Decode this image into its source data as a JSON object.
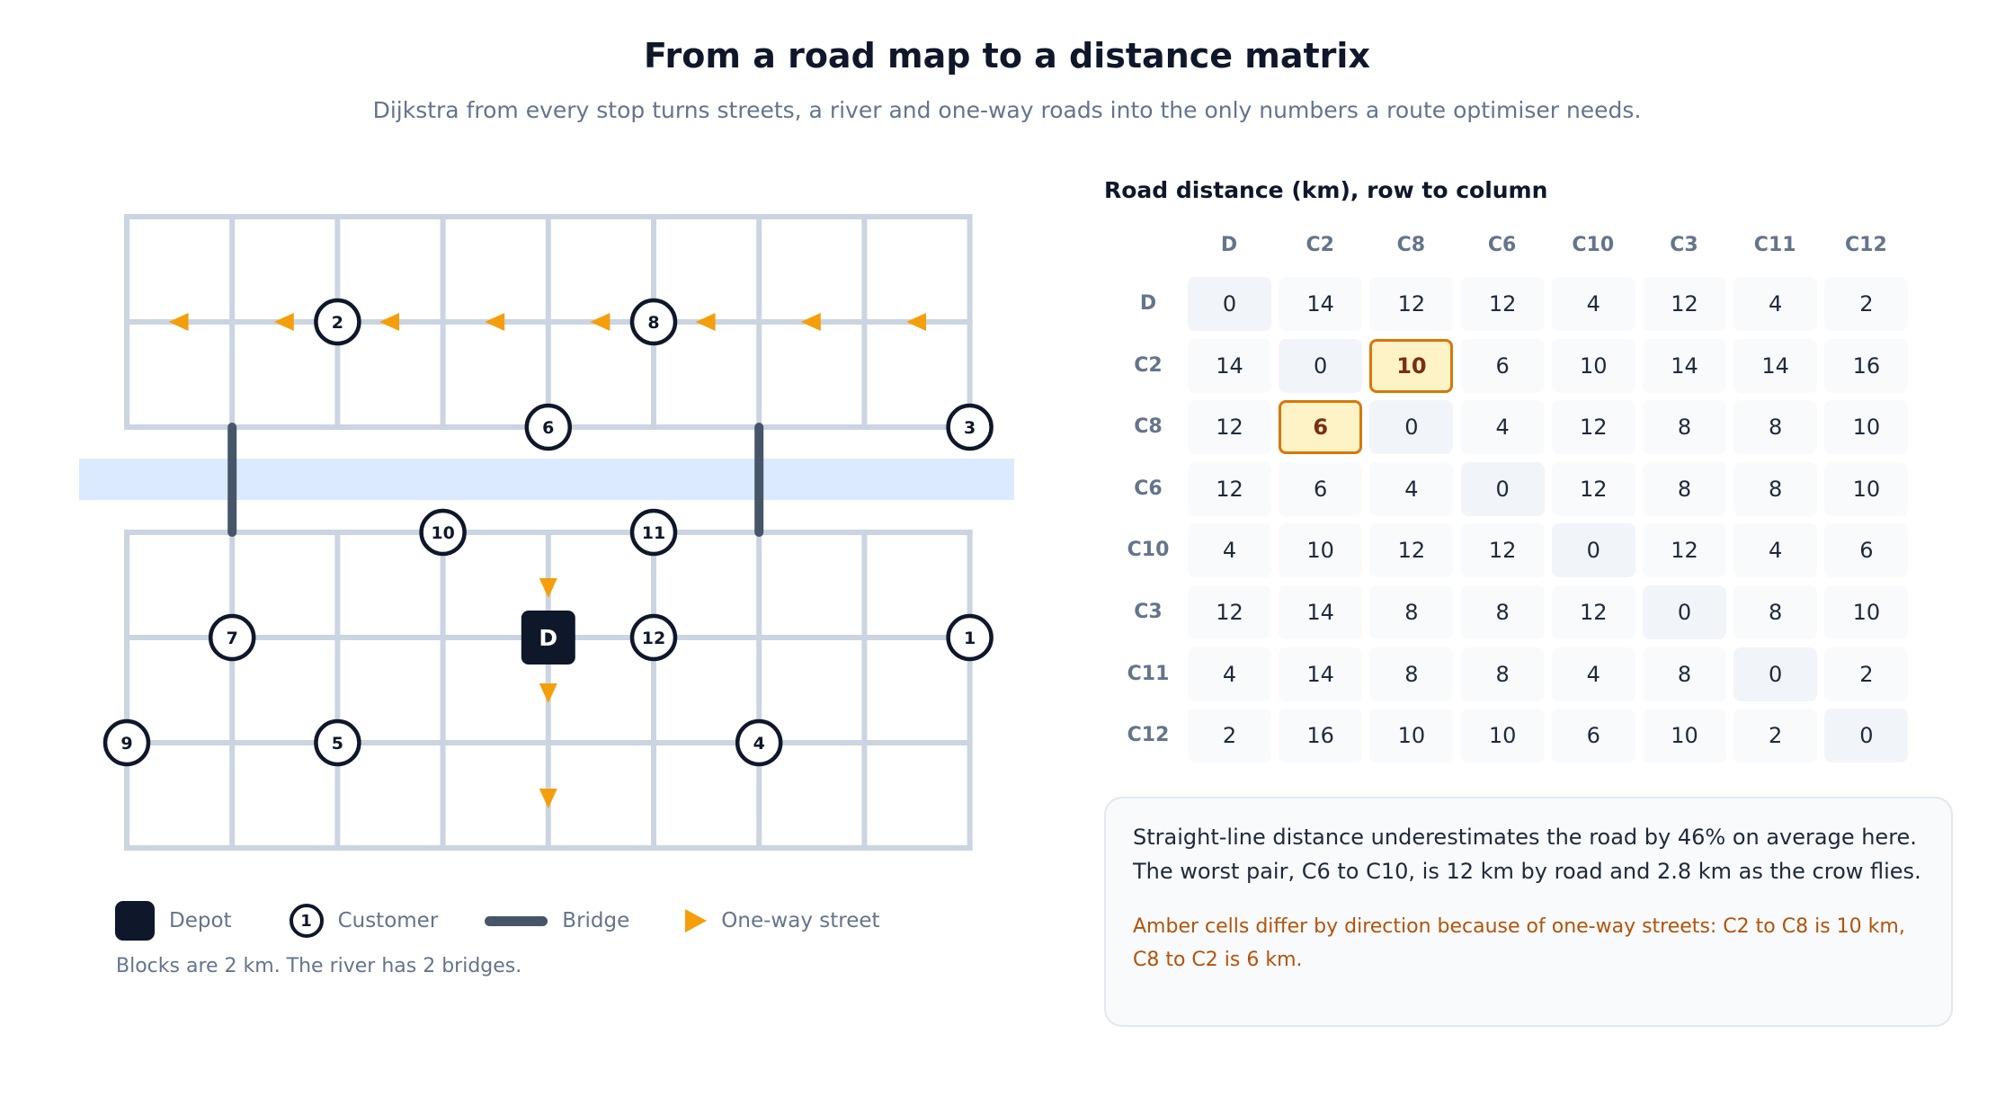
{
  "header": {
    "title": "From a road map to a distance matrix",
    "subtitle": "Dijkstra from every stop turns streets, a river and one-way roads into the only numbers a route optimiser needs."
  },
  "map": {
    "depot_label": "D",
    "customers": [
      {
        "label": "1",
        "col": 8,
        "row": 4
      },
      {
        "label": "2",
        "col": 2,
        "row": 1
      },
      {
        "label": "3",
        "col": 8,
        "row": 2
      },
      {
        "label": "4",
        "col": 6,
        "row": 5
      },
      {
        "label": "5",
        "col": 2,
        "row": 5
      },
      {
        "label": "6",
        "col": 4,
        "row": 2
      },
      {
        "label": "7",
        "col": 1,
        "row": 4
      },
      {
        "label": "8",
        "col": 5,
        "row": 1
      },
      {
        "label": "9",
        "col": 0,
        "row": 5
      },
      {
        "label": "10",
        "col": 3,
        "row": 3
      },
      {
        "label": "11",
        "col": 5,
        "row": 3
      },
      {
        "label": "12",
        "col": 5,
        "row": 4
      }
    ],
    "depot": {
      "col": 4,
      "row": 4
    },
    "bridges_at_cols": [
      1,
      6
    ],
    "colors": {
      "street": "#cbd5e1",
      "river": "#dbeafe",
      "bridge": "#475569",
      "one_way": "#f59e0b",
      "node": "#0f172a"
    }
  },
  "legend": {
    "depot": "Depot",
    "customer": "Customer",
    "customer_symbol": "1",
    "bridge": "Bridge",
    "one_way": "One-way street"
  },
  "caption": "Blocks are 2 km. The river has 2 bridges.",
  "matrix": {
    "title": "Road distance (km), row to column",
    "labels": [
      "D",
      "C2",
      "C8",
      "C6",
      "C10",
      "C3",
      "C11",
      "C12"
    ],
    "values": [
      [
        0,
        14,
        12,
        12,
        4,
        12,
        4,
        2
      ],
      [
        14,
        0,
        10,
        6,
        10,
        14,
        14,
        16
      ],
      [
        12,
        6,
        0,
        4,
        12,
        8,
        8,
        10
      ],
      [
        12,
        6,
        4,
        0,
        12,
        8,
        8,
        10
      ],
      [
        4,
        10,
        12,
        12,
        0,
        12,
        4,
        6
      ],
      [
        12,
        14,
        8,
        8,
        12,
        0,
        8,
        10
      ],
      [
        4,
        14,
        8,
        8,
        4,
        8,
        0,
        2
      ],
      [
        2,
        16,
        10,
        10,
        6,
        10,
        2,
        0
      ]
    ],
    "amber_cells": [
      [
        1,
        2
      ],
      [
        2,
        1
      ]
    ],
    "colors": {
      "amber_fill": "#fef3c7",
      "amber_border": "#d97706"
    }
  },
  "note": {
    "main": "Straight-line distance underestimates the road by 46% on average here. The worst pair, C6 to C10, is 12 km by road and 2.8 km as the crow flies.",
    "amber": "Amber cells differ by direction because of one-way streets: C2 to C8 is 10 km, C8 to C2 is 6 km."
  }
}
